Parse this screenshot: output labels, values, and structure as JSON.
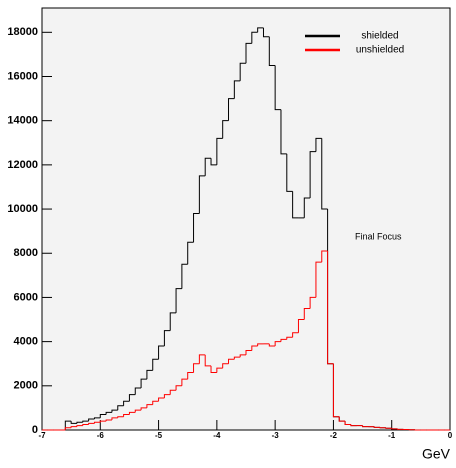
{
  "chart_data": {
    "type": "histogram",
    "x_label": "GeV",
    "annotation": "Final Focus",
    "bins": [
      -7.0,
      -6.9,
      -6.8,
      -6.7,
      -6.6,
      -6.5,
      -6.4,
      -6.3,
      -6.2,
      -6.1,
      -6.0,
      -5.9,
      -5.8,
      -5.7,
      -5.6,
      -5.5,
      -5.4,
      -5.3,
      -5.2,
      -5.1,
      -5.0,
      -4.9,
      -4.8,
      -4.7,
      -4.6,
      -4.5,
      -4.4,
      -4.3,
      -4.2,
      -4.1,
      -4.0,
      -3.9,
      -3.8,
      -3.7,
      -3.6,
      -3.5,
      -3.4,
      -3.3,
      -3.2,
      -3.1,
      -3.0,
      -2.9,
      -2.8,
      -2.7,
      -2.6,
      -2.5,
      -2.4,
      -2.3,
      -2.2,
      -2.1,
      -2.0,
      -1.9,
      -1.8,
      -1.7,
      -1.6,
      -1.5,
      -1.4,
      -1.3,
      -1.2,
      -1.1,
      -1.0,
      -0.9,
      -0.8,
      -0.7,
      -0.6,
      -0.5,
      -0.4,
      -0.3,
      -0.2,
      -0.1,
      0.0
    ],
    "series": [
      {
        "name": "shielded",
        "color": "#000000",
        "values": [
          0,
          0,
          0,
          0,
          400,
          300,
          350,
          400,
          500,
          550,
          700,
          800,
          900,
          1100,
          1300,
          1600,
          1900,
          2300,
          2700,
          3200,
          3800,
          4500,
          5300,
          6400,
          7500,
          8500,
          9800,
          11500,
          12300,
          12000,
          13200,
          14000,
          15000,
          15800,
          16600,
          17500,
          18000,
          18200,
          17800,
          16500,
          14500,
          12500,
          10800,
          9600,
          9600,
          10500,
          12600,
          13200,
          10000,
          3000,
          600,
          400,
          250,
          200,
          200,
          150,
          150,
          120,
          100,
          80,
          50,
          30,
          20,
          10,
          0,
          0,
          0,
          0,
          0,
          0
        ]
      },
      {
        "name": "unshielded",
        "color": "#ff0000",
        "values": [
          0,
          0,
          0,
          0,
          100,
          150,
          200,
          250,
          300,
          350,
          400,
          450,
          550,
          600,
          700,
          800,
          900,
          1000,
          1150,
          1300,
          1450,
          1600,
          1800,
          2000,
          2300,
          2600,
          3000,
          3400,
          2900,
          2600,
          2800,
          3000,
          3200,
          3300,
          3400,
          3600,
          3800,
          3900,
          3900,
          3800,
          4000,
          4100,
          4200,
          4400,
          5000,
          5500,
          6000,
          7600,
          8100,
          3000,
          600,
          400,
          250,
          200,
          200,
          150,
          150,
          120,
          100,
          80,
          50,
          30,
          20,
          10,
          0,
          0,
          0,
          0,
          0,
          0
        ]
      }
    ],
    "xlim": [
      -7,
      0
    ],
    "xticks": [
      -7,
      -6,
      -5,
      -4,
      -3,
      -2,
      -1,
      0
    ],
    "ylim": [
      0,
      19100
    ],
    "yticks": [
      0,
      2000,
      4000,
      6000,
      8000,
      10000,
      12000,
      14000,
      16000,
      18000
    ],
    "legend": "top-right"
  }
}
